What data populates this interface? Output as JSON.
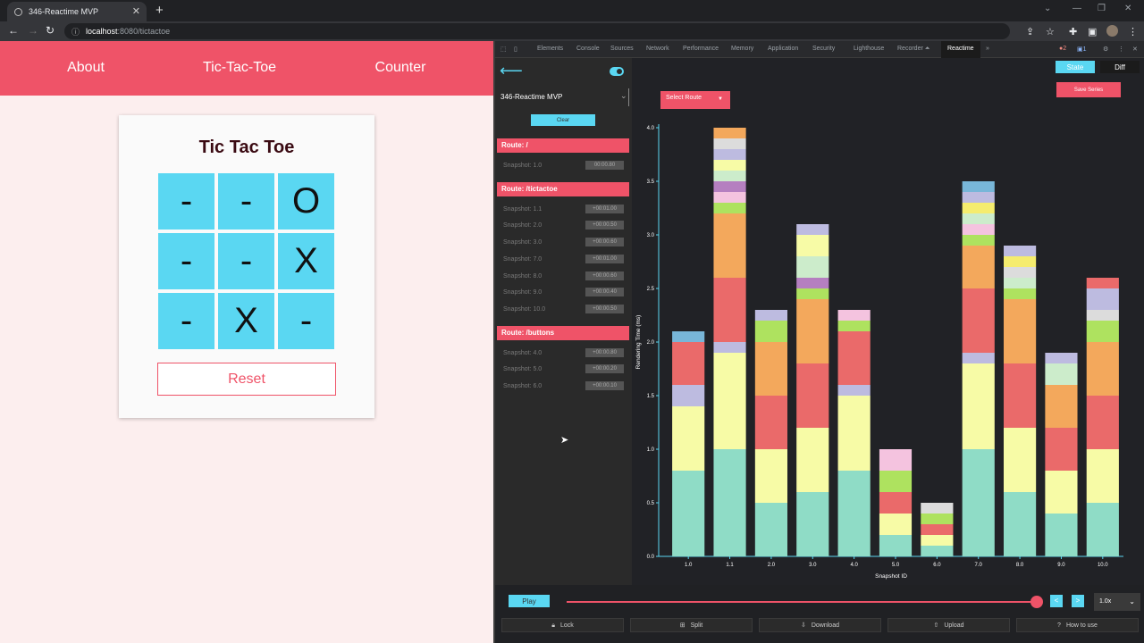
{
  "browser": {
    "tab_title": "346-Reactime MVP",
    "url_host": "localhost",
    "url_path": ":8080/tictactoe"
  },
  "app": {
    "nav": [
      "About",
      "Tic-Tac-Toe",
      "Counter"
    ],
    "title": "Tic Tac Toe",
    "board": [
      "-",
      "-",
      "O",
      "-",
      "-",
      "X",
      "-",
      "X",
      "-"
    ],
    "reset_label": "Reset"
  },
  "devtools": {
    "tabs": [
      "Elements",
      "Console",
      "Sources",
      "Network",
      "Performance",
      "Memory",
      "Application",
      "Security",
      "Lighthouse",
      "Recorder ⏶",
      "Reactime"
    ],
    "badges": {
      "errors": "2",
      "messages": "1"
    }
  },
  "reactime": {
    "app_select": "346-Reactime MVP",
    "clear_label": "Clear",
    "routes": [
      {
        "label": "Route: /",
        "snapshots": [
          {
            "label": "Snapshot: 1.0",
            "duration": "00:00.80"
          }
        ]
      },
      {
        "label": "Route: /tictactoe",
        "snapshots": [
          {
            "label": "Snapshot: 1.1",
            "duration": "+00:01.00"
          },
          {
            "label": "Snapshot: 2.0",
            "duration": "+00:00.50"
          },
          {
            "label": "Snapshot: 3.0",
            "duration": "+00:00.60"
          },
          {
            "label": "Snapshot: 7.0",
            "duration": "+00:01.00"
          },
          {
            "label": "Snapshot: 8.0",
            "duration": "+00:00.60"
          },
          {
            "label": "Snapshot: 9.0",
            "duration": "+00:00.40"
          },
          {
            "label": "Snapshot: 10.0",
            "duration": "+00:00.50"
          }
        ]
      },
      {
        "label": "Route: /buttons",
        "snapshots": [
          {
            "label": "Snapshot: 4.0",
            "duration": "+00:00.80"
          },
          {
            "label": "Snapshot: 5.0",
            "duration": "+00:00.20"
          },
          {
            "label": "Snapshot: 6.0",
            "duration": "+00:00.10"
          }
        ]
      }
    ],
    "state_label": "State",
    "diff_label": "Diff",
    "save_series_label": "Save Series",
    "select_route_label": "Select Route",
    "play_label": "Play",
    "speed": "1.0x",
    "step_prev": "<",
    "step_next": ">",
    "toolbar": [
      "Lock",
      "Split",
      "Download",
      "Upload",
      "How to use"
    ],
    "toolbar_icons": [
      "lock-icon",
      "split-icon",
      "download-icon",
      "upload-icon",
      "help-icon"
    ]
  },
  "chart_data": {
    "type": "bar",
    "stacked": true,
    "xlabel": "Snapshot ID",
    "ylabel": "Rendering Time (ms)",
    "ylim": [
      0,
      4.0
    ],
    "yticks": [
      "0.0",
      "0.5",
      "1.0",
      "1.5",
      "2.0",
      "2.5",
      "3.0",
      "3.5",
      "4.0"
    ],
    "categories": [
      "1.0",
      "1.1",
      "2.0",
      "3.0",
      "4.0",
      "5.0",
      "6.0",
      "7.0",
      "8.0",
      "9.0",
      "10.0"
    ],
    "colors": [
      "#8fdcc6",
      "#f7fba6",
      "#bdbbe0",
      "#ea6a6a",
      "#f3a85c",
      "#aee25f",
      "#f4c3df",
      "#dcdcdc",
      "#b57fc0",
      "#cceccb",
      "#f5ec6e"
    ],
    "stacks": [
      [
        0.8,
        0.6,
        0.2,
        0.4,
        0.1
      ],
      [
        1.0,
        0.9,
        0.1,
        0.6,
        0.6,
        0.1,
        0.1,
        0.1,
        0.1,
        0.1,
        0.1,
        0.1,
        0.1
      ],
      [
        0.5,
        0.5,
        0.5,
        0.5,
        0.2,
        0.1
      ],
      [
        0.6,
        0.6,
        0.6,
        0.6,
        0.1,
        0.1,
        0.2,
        0.2,
        0.1
      ],
      [
        0.8,
        0.7,
        0.1,
        0.5,
        0.1,
        0.1
      ],
      [
        0.2,
        0.2,
        0.2,
        0.2,
        0.2
      ],
      [
        0.1,
        0.1,
        0.1,
        0.1,
        0.1
      ],
      [
        1.0,
        0.8,
        0.1,
        0.6,
        0.4,
        0.1,
        0.1,
        0.1,
        0.1,
        0.1,
        0.1
      ],
      [
        0.6,
        0.6,
        0.6,
        0.6,
        0.1,
        0.1,
        0.1,
        0.1,
        0.1
      ],
      [
        0.4,
        0.4,
        0.4,
        0.4,
        0.2,
        0.1
      ],
      [
        0.5,
        0.5,
        0.5,
        0.5,
        0.2,
        0.1,
        0.2,
        0.1
      ]
    ],
    "stack_colors": [
      [
        "#8fdcc6",
        "#f7fba6",
        "#bdbbe0",
        "#ea6a6a",
        "#78b6d8"
      ],
      [
        "#8fdcc6",
        "#f7fba6",
        "#bdbbe0",
        "#ea6a6a",
        "#f3a85c",
        "#aee25f",
        "#f4c3df",
        "#b57fc0",
        "#cceccb",
        "#f7fba6",
        "#bdbbe0",
        "#dcdcdc",
        "#f3a85c"
      ],
      [
        "#8fdcc6",
        "#f7fba6",
        "#ea6a6a",
        "#f3a85c",
        "#aee25f",
        "#bdbbe0"
      ],
      [
        "#8fdcc6",
        "#f7fba6",
        "#ea6a6a",
        "#f3a85c",
        "#aee25f",
        "#b57fc0",
        "#cceccb",
        "#f7fba6",
        "#bdbbe0"
      ],
      [
        "#8fdcc6",
        "#f7fba6",
        "#bdbbe0",
        "#ea6a6a",
        "#aee25f",
        "#f4c3df"
      ],
      [
        "#8fdcc6",
        "#f7fba6",
        "#ea6a6a",
        "#aee25f",
        "#f4c3df"
      ],
      [
        "#8fdcc6",
        "#f7fba6",
        "#ea6a6a",
        "#aee25f",
        "#dcdcdc"
      ],
      [
        "#8fdcc6",
        "#f7fba6",
        "#bdbbe0",
        "#ea6a6a",
        "#f3a85c",
        "#aee25f",
        "#f4c3df",
        "#cceccb",
        "#f5ec6e",
        "#bdbbe0",
        "#78b6d8"
      ],
      [
        "#8fdcc6",
        "#f7fba6",
        "#ea6a6a",
        "#f3a85c",
        "#aee25f",
        "#cceccb",
        "#dcdcdc",
        "#f5ec6e",
        "#bdbbe0"
      ],
      [
        "#8fdcc6",
        "#f7fba6",
        "#ea6a6a",
        "#f3a85c",
        "#cceccb",
        "#bdbbe0"
      ],
      [
        "#8fdcc6",
        "#f7fba6",
        "#ea6a6a",
        "#f3a85c",
        "#aee25f",
        "#dcdcdc",
        "#bdbbe0",
        "#ea6a6a"
      ]
    ]
  }
}
